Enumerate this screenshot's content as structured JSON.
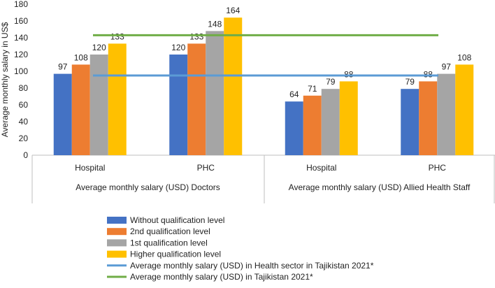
{
  "chart_data": {
    "type": "bar",
    "ylabel": "Average monthly salary in US$",
    "ylim": [
      0,
      180
    ],
    "yticks": [
      0,
      20,
      40,
      60,
      80,
      100,
      120,
      140,
      160,
      180
    ],
    "groups": [
      {
        "label": "Average monthly salary (USD) Doctors",
        "categories": [
          "Hospital",
          "PHC"
        ]
      },
      {
        "label": "Average monthly salary (USD) Allied Health Staff",
        "categories": [
          "Hospital",
          "PHC"
        ]
      }
    ],
    "series": [
      {
        "name": "Without qualification level",
        "color": "#4472C4",
        "values": [
          97,
          120,
          64,
          79
        ]
      },
      {
        "name": "2nd qualification level",
        "color": "#ED7D31",
        "values": [
          108,
          133,
          71,
          88
        ]
      },
      {
        "name": "1st qualification level",
        "color": "#A5A5A5",
        "values": [
          120,
          148,
          79,
          97
        ]
      },
      {
        "name": "Higher qualification level",
        "color": "#FFC000",
        "values": [
          133,
          164,
          88,
          108
        ]
      }
    ],
    "reference_lines": [
      {
        "name": "Average monthly salary (USD) in Health sector in Tajikistan 2021*",
        "color": "#5B9BD5",
        "value": 95
      },
      {
        "name": "Average monthly salary (USD) in Tajikistan 2021*",
        "color": "#70AD47",
        "value": 143
      }
    ]
  }
}
